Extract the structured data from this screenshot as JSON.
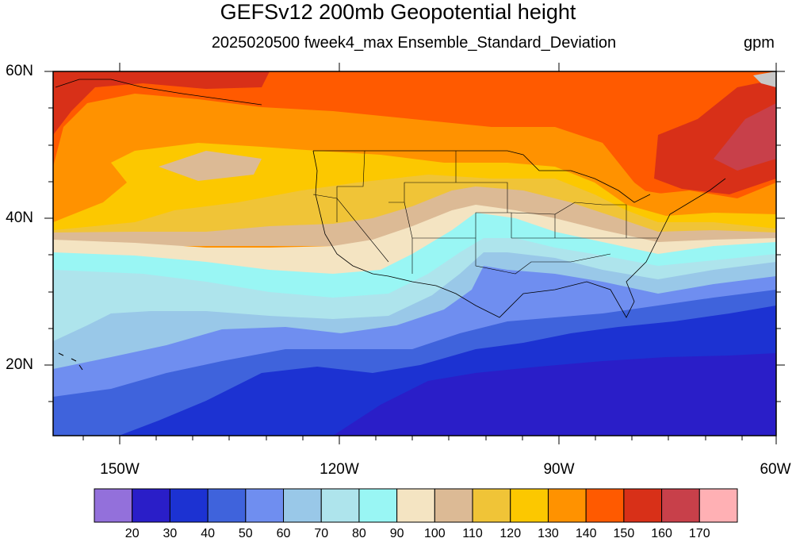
{
  "title": "GEFSv12 200mb Geopotential height",
  "subtitle": "2025020500 fweek4_max Ensemble_Standard_Deviation",
  "units": "gpm",
  "map": {
    "lon_labels": [
      "150W",
      "120W",
      "90W",
      "60W"
    ],
    "lat_labels": [
      "60N",
      "40N",
      "20N"
    ],
    "extent": {
      "lon_min": -159,
      "lon_max": -60,
      "lat_min": 10,
      "lat_max": 60
    }
  },
  "colorbar": {
    "colors": [
      "#9370db",
      "#2a1ec8",
      "#1c32d2",
      "#3f63dc",
      "#6f8ef0",
      "#99c8e8",
      "#aee4ec",
      "#99f6f4",
      "#f4e4c2",
      "#dcba95",
      "#f0c437",
      "#fcc800",
      "#ff9200",
      "#ff5a00",
      "#d83018",
      "#c8404a",
      "#ffb0b4"
    ],
    "labels": [
      "20",
      "30",
      "40",
      "50",
      "60",
      "70",
      "80",
      "90",
      "100",
      "110",
      "120",
      "130",
      "140",
      "150",
      "160",
      "170"
    ]
  }
}
